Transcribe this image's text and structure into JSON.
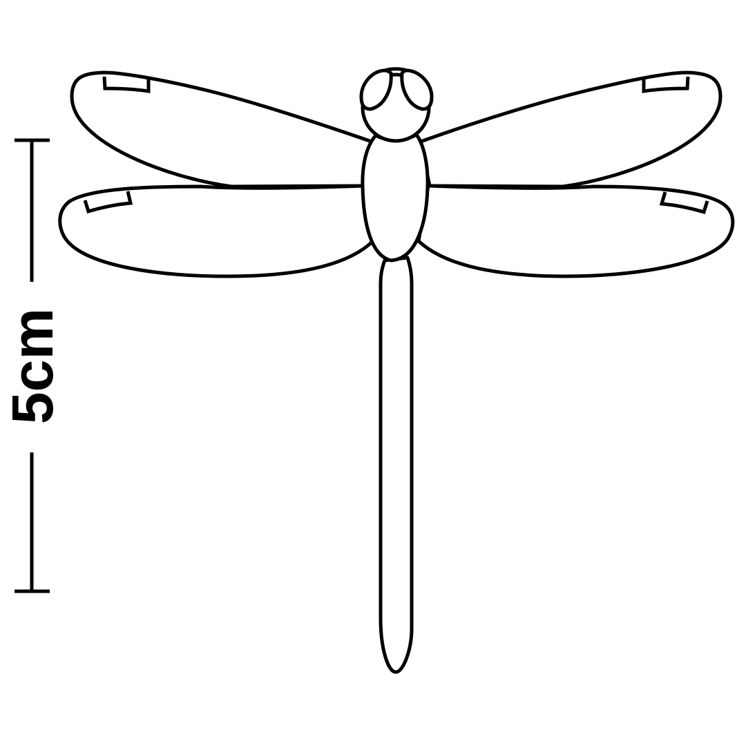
{
  "scale_bar": {
    "label": "5cm"
  },
  "colors": {
    "ink": "#000000",
    "background": "#ffffff"
  }
}
